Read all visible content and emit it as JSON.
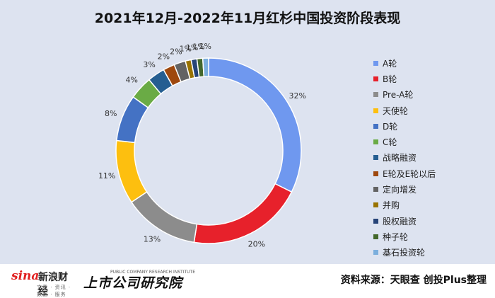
{
  "chart_data": {
    "type": "pie",
    "donut": true,
    "title": "2021年12月-2022年11月红杉中国投资阶段表现",
    "legend_position": "right",
    "categories": [
      "A轮",
      "B轮",
      "Pre-A轮",
      "天使轮",
      "D轮",
      "C轮",
      "战略融资",
      "E轮及E轮以后",
      "定向增发",
      "并购",
      "股权融资",
      "种子轮",
      "基石投资轮"
    ],
    "values": [
      32,
      20,
      13,
      11,
      8,
      4,
      3,
      2,
      2,
      1,
      1,
      1,
      1
    ],
    "labels": [
      "32%",
      "20%",
      "13%",
      "11%",
      "8%",
      "4%",
      "3%",
      "2%",
      "2%",
      "1%",
      "1%",
      "1%",
      "1%"
    ],
    "colors": [
      "#6f98ef",
      "#e7212b",
      "#8c8c8c",
      "#fdbf0f",
      "#4472c4",
      "#6aab45",
      "#255e91",
      "#9e480e",
      "#636363",
      "#997300",
      "#264478",
      "#43682b",
      "#7cafdd"
    ]
  },
  "footer": {
    "sina_brand": "sina",
    "sina_name": "新浪财经",
    "sina_tagline": "文章 · 资讯 · 数据 · 服务",
    "institute_name": "上市公司研究院",
    "institute_en": "PUBLIC COMPANY RESEARCH INSTITUTE",
    "source_text": "资料来源：天眼查 创投Plus整理"
  }
}
